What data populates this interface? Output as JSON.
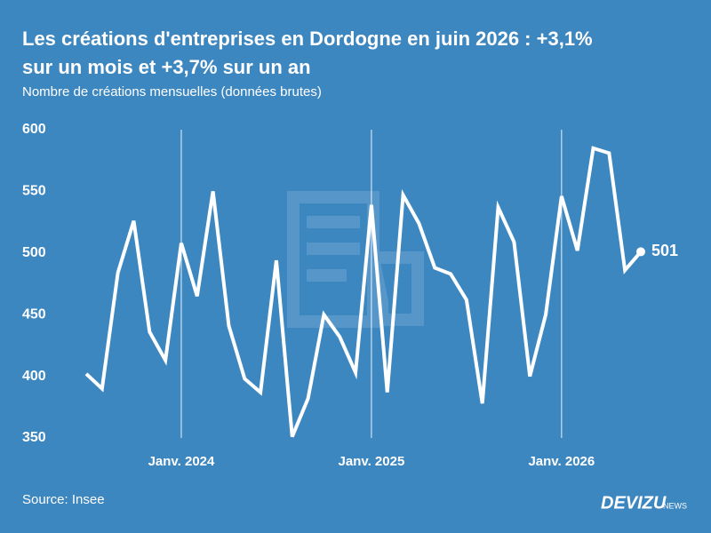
{
  "chart_data": {
    "type": "line",
    "title": [
      "Les créations d'entreprises en Dordogne en juin 2026 : +3,1%",
      "sur un mois et +3,7% sur un an"
    ],
    "subtitle": "Nombre de créations mensuelles (données brutes)",
    "source": "Source: Insee",
    "brand": "DEVIZU",
    "brand_suffix": "NEWS",
    "categories": [
      null,
      null,
      null,
      null,
      null,
      null,
      "Janv. 2024",
      null,
      null,
      null,
      null,
      null,
      null,
      null,
      null,
      null,
      null,
      null,
      "Janv. 2025",
      null,
      null,
      null,
      null,
      null,
      null,
      null,
      null,
      null,
      null,
      null,
      "Janv. 2026",
      null,
      null,
      null,
      null,
      null
    ],
    "values": [
      402,
      390,
      484,
      526,
      436,
      413,
      508,
      465,
      550,
      441,
      398,
      387,
      494,
      351,
      382,
      450,
      432,
      403,
      539,
      387,
      547,
      524,
      488,
      483,
      462,
      378,
      537,
      509,
      400,
      450,
      546,
      502,
      585,
      581,
      486,
      501
    ],
    "color": "#ffffff",
    "ylim": [
      350,
      600
    ],
    "yticks": [
      350,
      400,
      450,
      500,
      550,
      600
    ]
  }
}
